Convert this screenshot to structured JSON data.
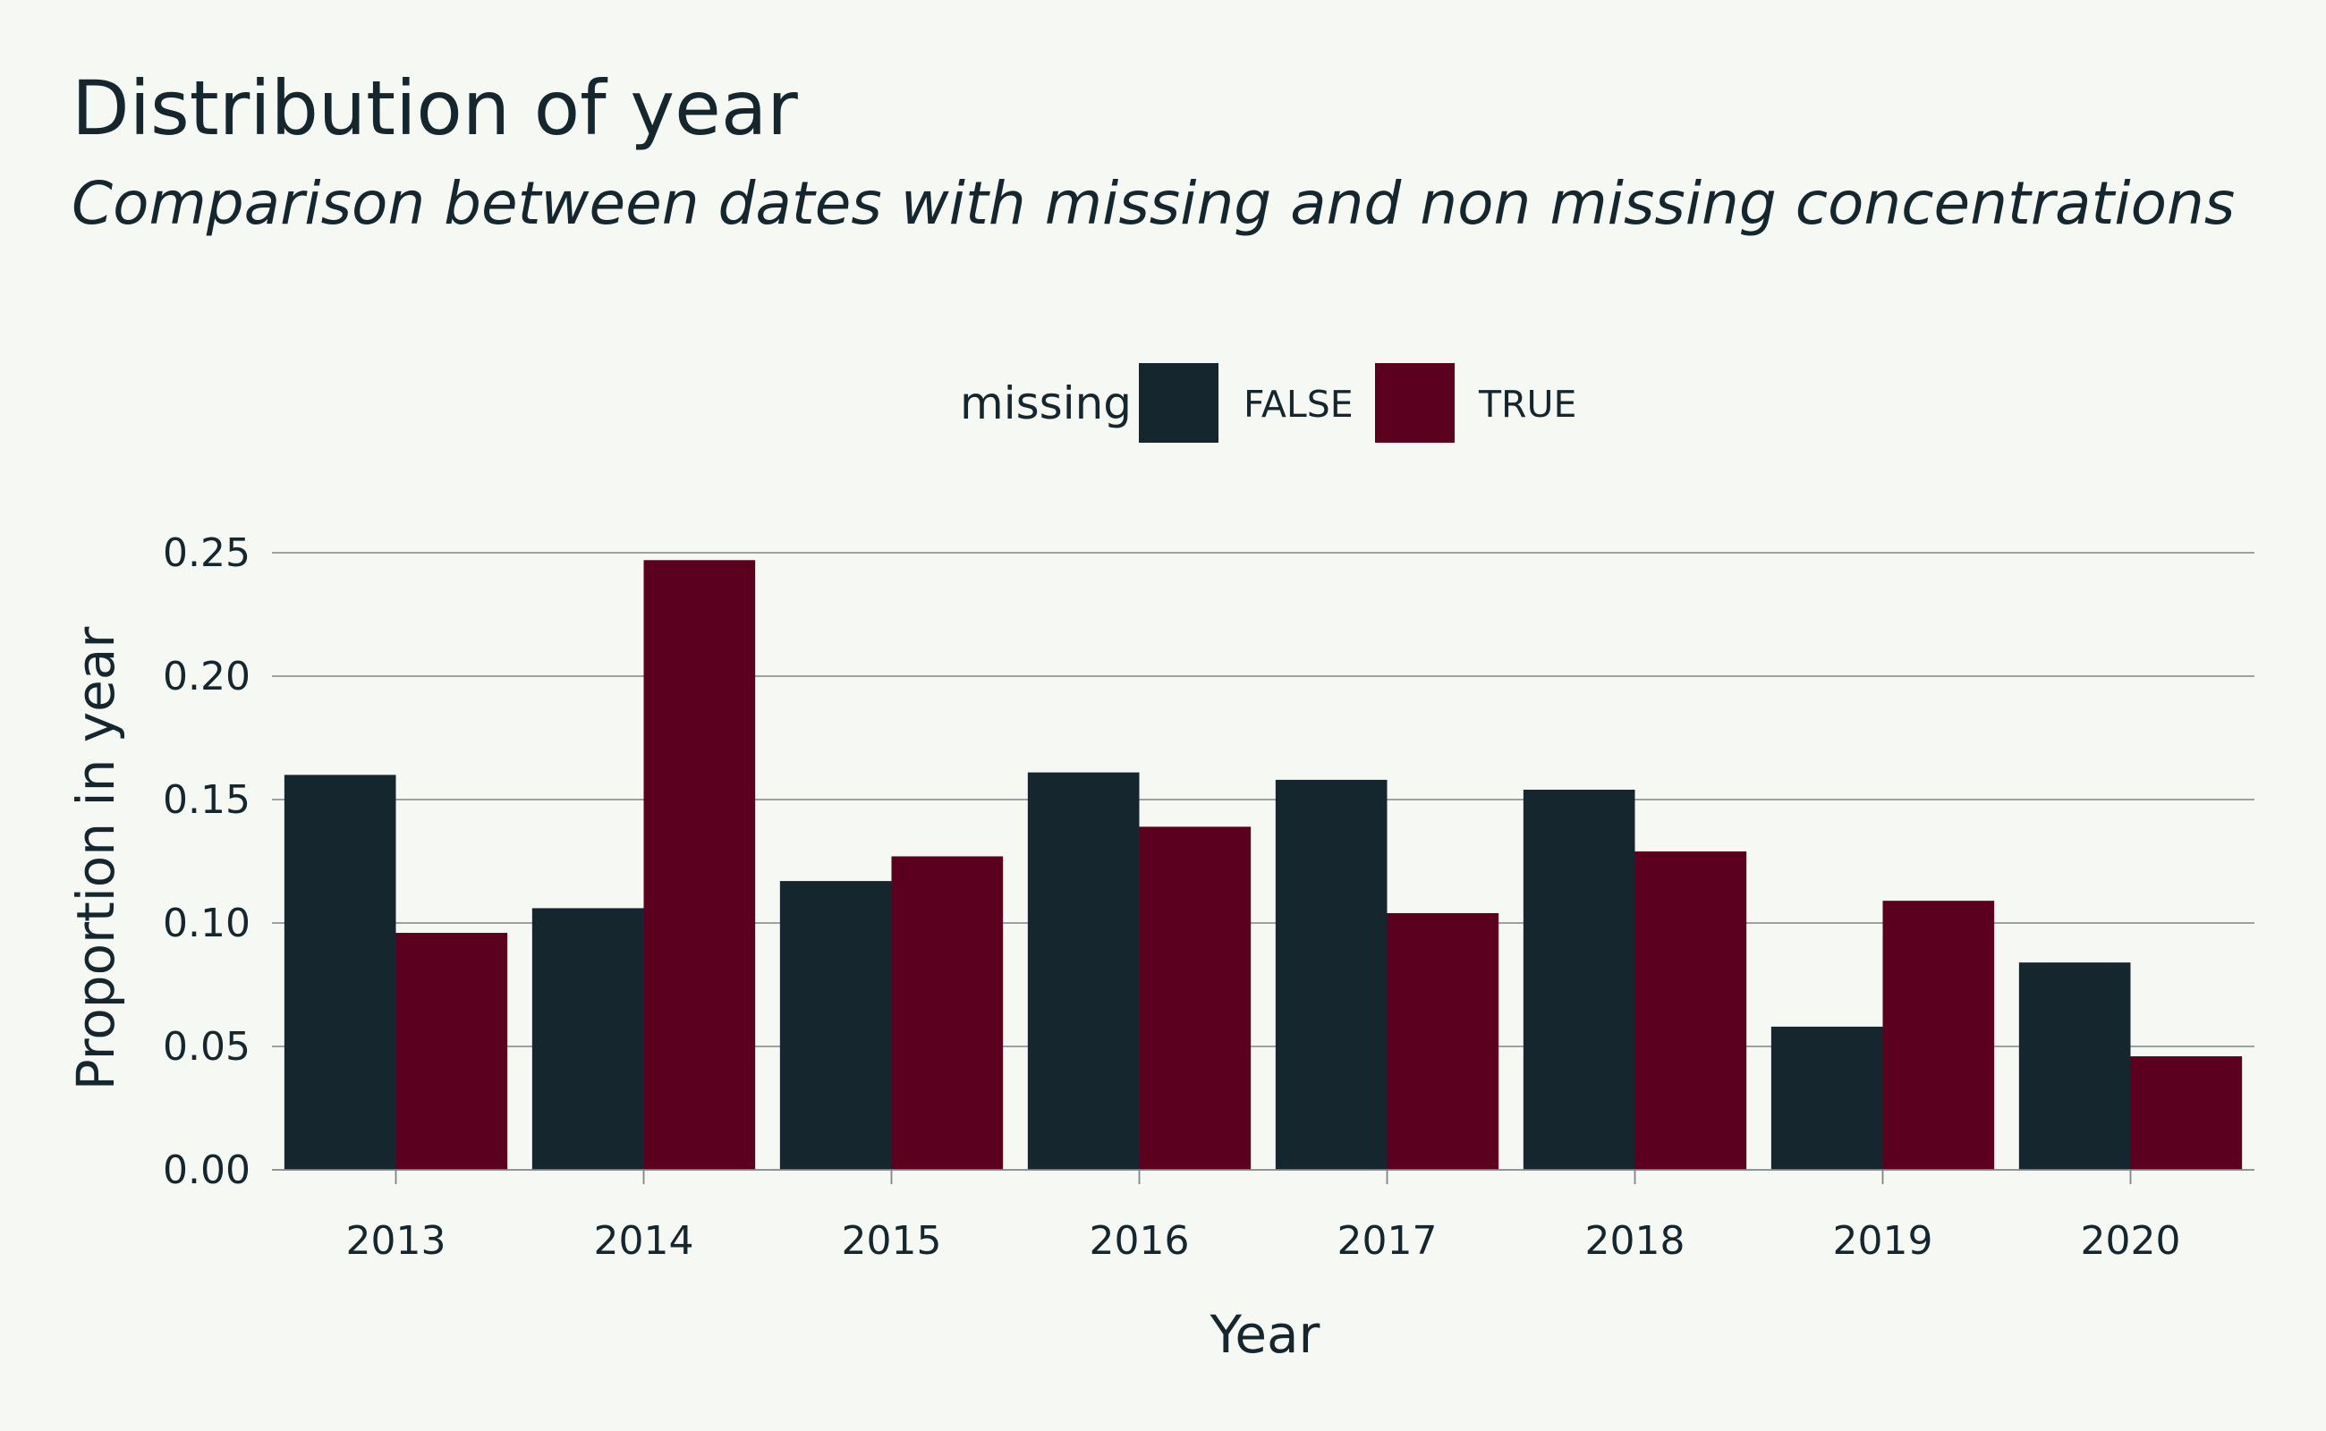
{
  "chart_data": {
    "type": "bar",
    "title": "Distribution of year",
    "subtitle": "Comparison between dates with missing and non missing concentrations",
    "xlabel": "Year",
    "ylabel": "Proportion in year",
    "categories": [
      "2013",
      "2014",
      "2015",
      "2016",
      "2017",
      "2018",
      "2019",
      "2020"
    ],
    "series": [
      {
        "name": "FALSE",
        "color": "#16262e",
        "values": [
          0.16,
          0.106,
          0.117,
          0.161,
          0.158,
          0.154,
          0.058,
          0.084
        ]
      },
      {
        "name": "TRUE",
        "color": "#5c0020",
        "values": [
          0.096,
          0.247,
          0.127,
          0.139,
          0.104,
          0.129,
          0.109,
          0.046
        ]
      }
    ],
    "legend": {
      "title": "missing",
      "position": "top"
    },
    "ylim": [
      0,
      0.25
    ],
    "yticks": [
      "0.00",
      "0.05",
      "0.10",
      "0.15",
      "0.20",
      "0.25"
    ],
    "grid": "horizontal"
  }
}
